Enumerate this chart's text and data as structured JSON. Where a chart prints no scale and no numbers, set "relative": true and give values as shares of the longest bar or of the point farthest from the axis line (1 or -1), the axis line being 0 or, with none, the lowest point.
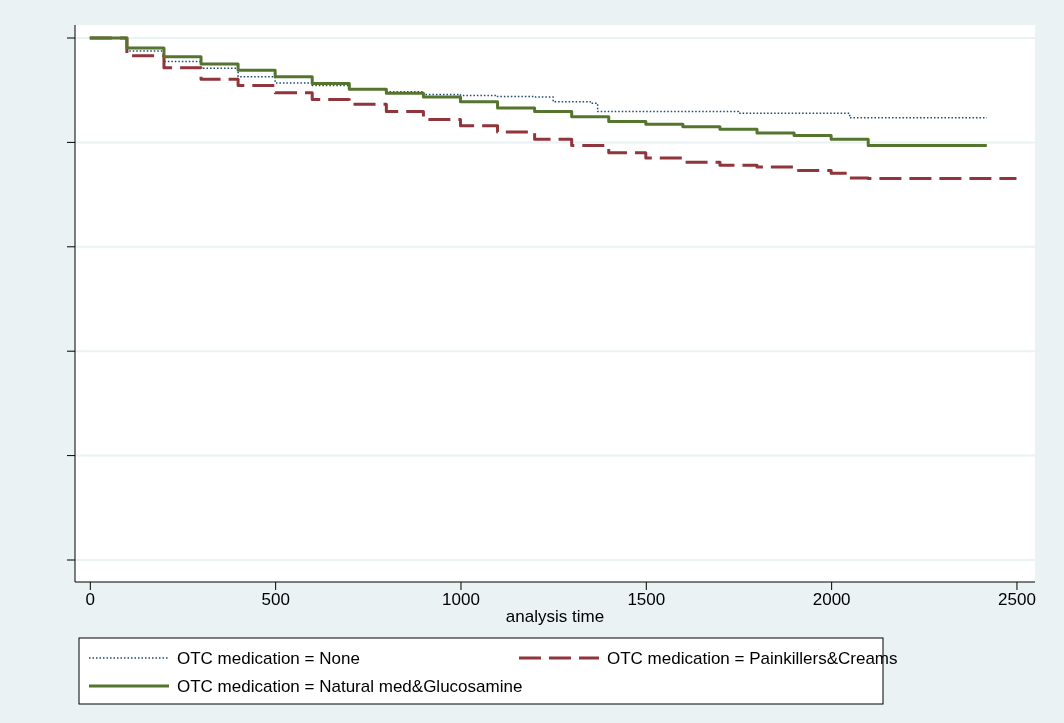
{
  "chart_data": {
    "type": "step",
    "relative": true,
    "xlabel": "analysis time",
    "xlim": [
      -40,
      2550
    ],
    "xticks": [
      0,
      500,
      1000,
      1500,
      2000,
      2500
    ],
    "grid": "y",
    "legend": "bottom",
    "marker": "none",
    "series": [
      {
        "name": "OTC medication = None",
        "color": "#1a476f",
        "line_style": "dotted",
        "x": [
          0,
          100,
          200,
          300,
          400,
          500,
          600,
          700,
          800,
          900,
          1000,
          1100,
          1200,
          1250,
          1350,
          1370,
          1500,
          1700,
          1750,
          2000,
          2050,
          2420
        ],
        "values": [
          1,
          0.975,
          0.955,
          0.942,
          0.926,
          0.914,
          0.909,
          0.902,
          0.897,
          0.892,
          0.89,
          0.888,
          0.887,
          0.878,
          0.875,
          0.859,
          0.859,
          0.859,
          0.856,
          0.856,
          0.847,
          0.847
        ]
      },
      {
        "name": "OTC medication = Painkillers&Creams",
        "color": "#90353b",
        "line_style": "dashed",
        "x": [
          0,
          100,
          200,
          300,
          400,
          500,
          600,
          700,
          800,
          900,
          1000,
          1100,
          1200,
          1300,
          1400,
          1500,
          1600,
          1700,
          1800,
          1900,
          2000,
          2050,
          2100,
          2500
        ],
        "values": [
          1,
          0.966,
          0.943,
          0.921,
          0.909,
          0.895,
          0.882,
          0.873,
          0.859,
          0.844,
          0.832,
          0.82,
          0.806,
          0.794,
          0.78,
          0.77,
          0.762,
          0.756,
          0.753,
          0.746,
          0.741,
          0.732,
          0.731,
          0.731
        ]
      },
      {
        "name": "OTC medication = Natural med&Glucosamine",
        "color": "#55752f",
        "line_style": "solid",
        "x": [
          0,
          100,
          200,
          300,
          400,
          500,
          600,
          700,
          800,
          900,
          1000,
          1100,
          1200,
          1300,
          1400,
          1500,
          1600,
          1700,
          1800,
          1900,
          2000,
          2100,
          2420
        ],
        "values": [
          1,
          0.981,
          0.964,
          0.95,
          0.938,
          0.926,
          0.913,
          0.902,
          0.894,
          0.887,
          0.878,
          0.866,
          0.859,
          0.849,
          0.84,
          0.835,
          0.83,
          0.825,
          0.818,
          0.813,
          0.806,
          0.794,
          0.794
        ]
      }
    ]
  }
}
